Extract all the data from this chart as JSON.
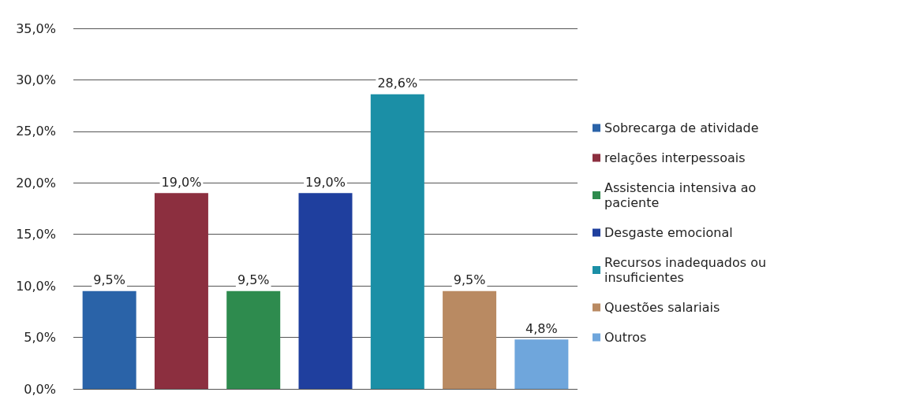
{
  "chart_data": {
    "type": "bar",
    "categories": [
      null,
      null,
      null,
      null,
      null,
      null,
      null
    ],
    "series": [
      {
        "name": "Sobrecarga de atividade",
        "color": "#2a63a8",
        "values": [
          9.5,
          null,
          null,
          null,
          null,
          null,
          null
        ],
        "value_labels": [
          "9,5%",
          null,
          null,
          null,
          null,
          null,
          null
        ]
      },
      {
        "name": "relações interpessoais",
        "color": "#8c2f3f",
        "values": [
          null,
          19.0,
          null,
          null,
          null,
          null,
          null
        ],
        "value_labels": [
          null,
          "19,0%",
          null,
          null,
          null,
          null,
          null
        ]
      },
      {
        "name": "Assistencia intensiva ao paciente",
        "color": "#2e8b4e",
        "values": [
          null,
          null,
          9.5,
          null,
          null,
          null,
          null
        ],
        "value_labels": [
          null,
          null,
          "9,5%",
          null,
          null,
          null,
          null
        ]
      },
      {
        "name": "Desgaste emocional",
        "color": "#1f3f9e",
        "values": [
          null,
          null,
          null,
          19.0,
          null,
          null,
          null
        ],
        "value_labels": [
          null,
          null,
          null,
          "19,0%",
          null,
          null,
          null
        ]
      },
      {
        "name": "Recursos inadequados ou insuficientes",
        "color": "#1b8fa6",
        "values": [
          null,
          null,
          null,
          null,
          28.6,
          null,
          null
        ],
        "value_labels": [
          null,
          null,
          null,
          null,
          "28,6%",
          null,
          null
        ]
      },
      {
        "name": "Questões salariais",
        "color": "#b98a62",
        "values": [
          null,
          null,
          null,
          null,
          null,
          9.5,
          null
        ],
        "value_labels": [
          null,
          null,
          null,
          null,
          null,
          "9,5%",
          null
        ]
      },
      {
        "name": "Outros",
        "color": "#6fa6dc",
        "values": [
          null,
          null,
          null,
          null,
          null,
          null,
          4.8
        ],
        "value_labels": [
          null,
          null,
          null,
          null,
          null,
          null,
          "4,8%"
        ]
      }
    ],
    "ylim": [
      0,
      35
    ],
    "yticks": [
      {
        "value": 0,
        "label": "0,0%"
      },
      {
        "value": 5,
        "label": "5,0%"
      },
      {
        "value": 10,
        "label": "10,0%"
      },
      {
        "value": 15,
        "label": "15,0%"
      },
      {
        "value": 20,
        "label": "20,0%"
      },
      {
        "value": 25,
        "label": "25,0%"
      },
      {
        "value": 30,
        "label": "30,0%"
      },
      {
        "value": 35,
        "label": "35,0%"
      }
    ],
    "grid": "y",
    "legend": "right"
  }
}
